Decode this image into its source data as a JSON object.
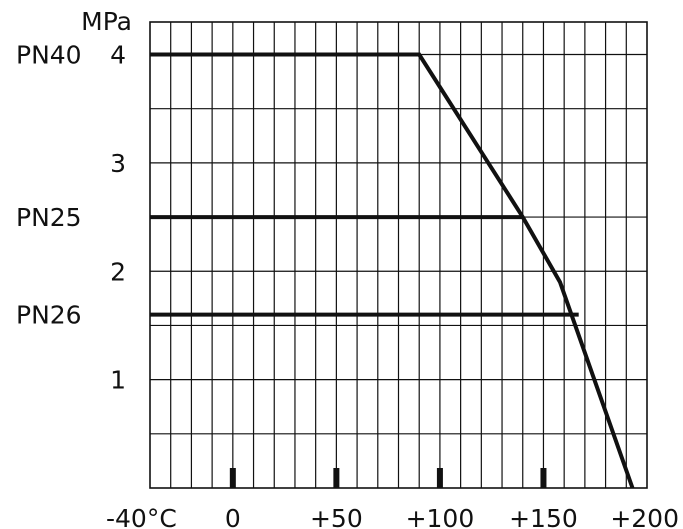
{
  "chart_data": {
    "type": "line",
    "ylabel": "MPa",
    "x_range": [
      -40,
      200
    ],
    "y_range": [
      0,
      4.3
    ],
    "grid": true,
    "grid_x_step": 10,
    "grid_y_step": 0.5,
    "x_ticks": [
      {
        "value": -40,
        "label": "-40°C"
      },
      {
        "value": 0,
        "label": "0"
      },
      {
        "value": 50,
        "label": "+50"
      },
      {
        "value": 100,
        "label": "+100"
      },
      {
        "value": 150,
        "label": "+150"
      },
      {
        "value": 200,
        "label": "+200"
      }
    ],
    "x_tick_marks": [
      0,
      50,
      100,
      150
    ],
    "y_ticks": [
      {
        "value": 1,
        "label": "1"
      },
      {
        "value": 2,
        "label": "2"
      },
      {
        "value": 3,
        "label": "3"
      },
      {
        "value": 4,
        "label": "4"
      }
    ],
    "series": [
      {
        "name": "PN40",
        "label_y": 4,
        "points": [
          [
            -40,
            4.0
          ],
          [
            90,
            4.0
          ],
          [
            140,
            2.5
          ],
          [
            158,
            1.9
          ],
          [
            193,
            0.0
          ]
        ]
      },
      {
        "name": "PN25",
        "label_y": 2.5,
        "points": [
          [
            -40,
            2.5
          ],
          [
            140,
            2.5
          ]
        ]
      },
      {
        "name": "PN26",
        "label_y": 1.6,
        "points": [
          [
            -40,
            1.6
          ],
          [
            167,
            1.6
          ]
        ]
      }
    ],
    "line_color": "#111111",
    "grid_color": "#111111"
  }
}
